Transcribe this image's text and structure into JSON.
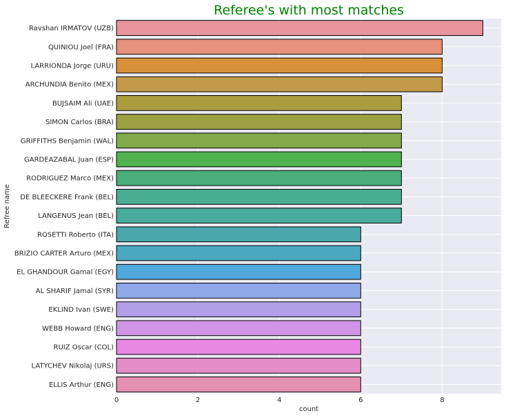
{
  "chart_data": {
    "type": "bar",
    "orientation": "horizontal",
    "title": "Referee's with most matches",
    "title_color": "#008000",
    "xlabel": "count",
    "ylabel": "Refree name",
    "xlim": [
      0,
      9.45
    ],
    "xticks": [
      0,
      2,
      4,
      6,
      8
    ],
    "grid": true,
    "legend": "none",
    "background": "#eaeaf2",
    "categories": [
      "Ravshan IRMATOV (UZB)",
      "QUINIOU Joel (FRA)",
      "LARRIONDA Jorge (URU)",
      "ARCHUNDIA Benito (MEX)",
      "BUJSAIM Ali (UAE)",
      "SIMON Carlos (BRA)",
      "GRIFFITHS Benjamin (WAL)",
      "GARDEAZABAL Juan (ESP)",
      "RODRIGUEZ Marco (MEX)",
      "DE BLEECKERE Frank (BEL)",
      "LANGENUS Jean (BEL)",
      "ROSETTI Roberto (ITA)",
      "BRIZIO CARTER Arturo (MEX)",
      "EL GHANDOUR Gamal (EGY)",
      "AL SHARIF Jamal (SYR)",
      "EKLIND Ivan (SWE)",
      "WEBB Howard (ENG)",
      "RUIZ Oscar (COL)",
      "LATYCHEV Nikolaj (URS)",
      "ELLIS Arthur (ENG)"
    ],
    "values": [
      9,
      8,
      8,
      8,
      7,
      7,
      7,
      7,
      7,
      7,
      7,
      6,
      6,
      6,
      6,
      6,
      6,
      6,
      6,
      6
    ],
    "colors": [
      "#e9949f",
      "#e5917c",
      "#d99139",
      "#c29a49",
      "#aa9c3f",
      "#9aa243",
      "#82aa4a",
      "#4fb24f",
      "#4aaf7c",
      "#4aae92",
      "#49ab9c",
      "#4aa8ad",
      "#4aa8bf",
      "#51a8db",
      "#8fa8e8",
      "#b1a0e8",
      "#d095e5",
      "#e887e4",
      "#e48dc8",
      "#e491b1"
    ]
  }
}
